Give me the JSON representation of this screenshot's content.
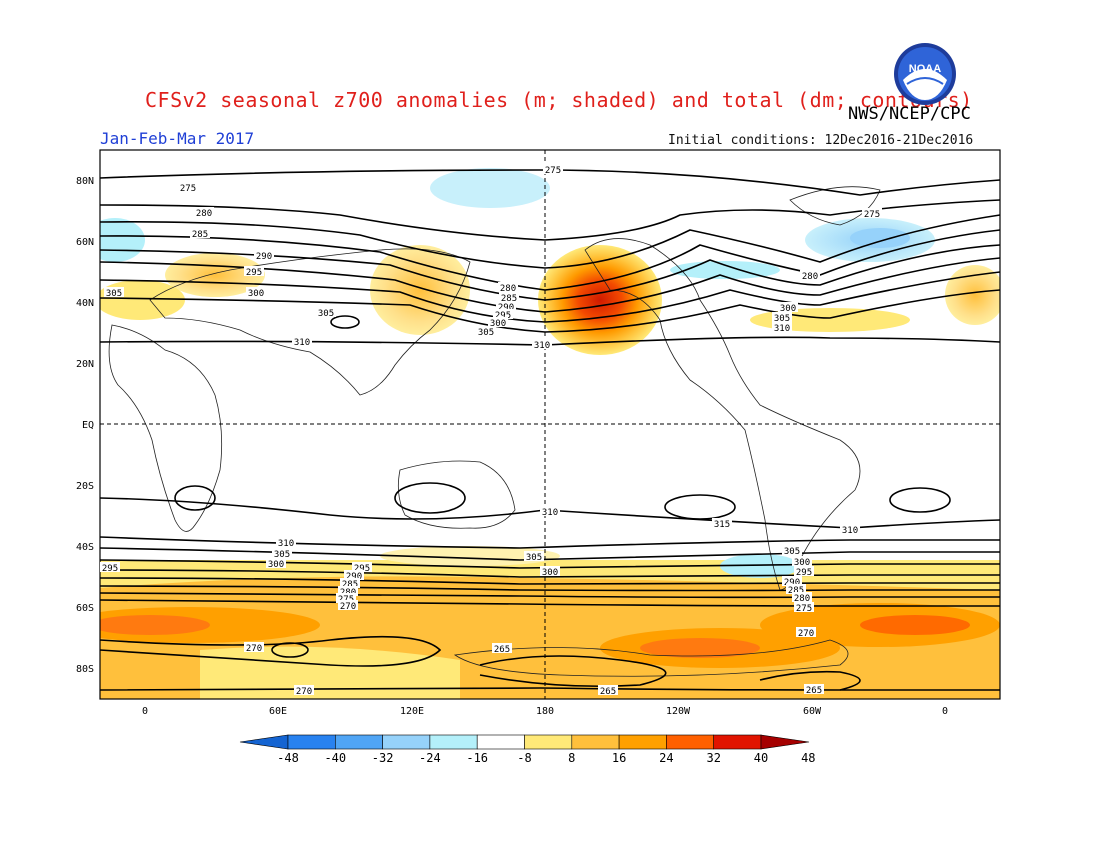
{
  "header": {
    "title": "CFSv2 seasonal z700 anomalies (m; shaded) and total (dm; contours)",
    "agency": "NWS/NCEP/CPC",
    "period": "Jan-Feb-Mar 2017",
    "initial_conditions": "Initial conditions: 12Dec2016-21Dec2016",
    "logo_text": "NOAA"
  },
  "map": {
    "lat_labels": [
      "80N",
      "60N",
      "40N",
      "20N",
      "EQ",
      "20S",
      "40S",
      "60S",
      "80S"
    ],
    "lon_labels": [
      "0",
      "60E",
      "120E",
      "180",
      "120W",
      "60W",
      "0"
    ],
    "contour_labels": {
      "north": [
        "275",
        "280",
        "285",
        "290",
        "295",
        "300",
        "305",
        "310"
      ],
      "south": [
        "310",
        "305",
        "300",
        "295",
        "290",
        "285",
        "280",
        "275",
        "270",
        "265"
      ],
      "tropics": [
        "310",
        "315"
      ]
    }
  },
  "colorbar": {
    "tick_labels": [
      "-48",
      "-40",
      "-32",
      "-24",
      "-16",
      "-8",
      "8",
      "16",
      "24",
      "32",
      "40",
      "48"
    ],
    "colors": [
      "#1464d2",
      "#2882f0",
      "#50a5f5",
      "#96d2fa",
      "#b4f0fa",
      "#ffffff",
      "#ffe978",
      "#ffc03c",
      "#ffa000",
      "#ff6000",
      "#e11400",
      "#a50000"
    ]
  }
}
